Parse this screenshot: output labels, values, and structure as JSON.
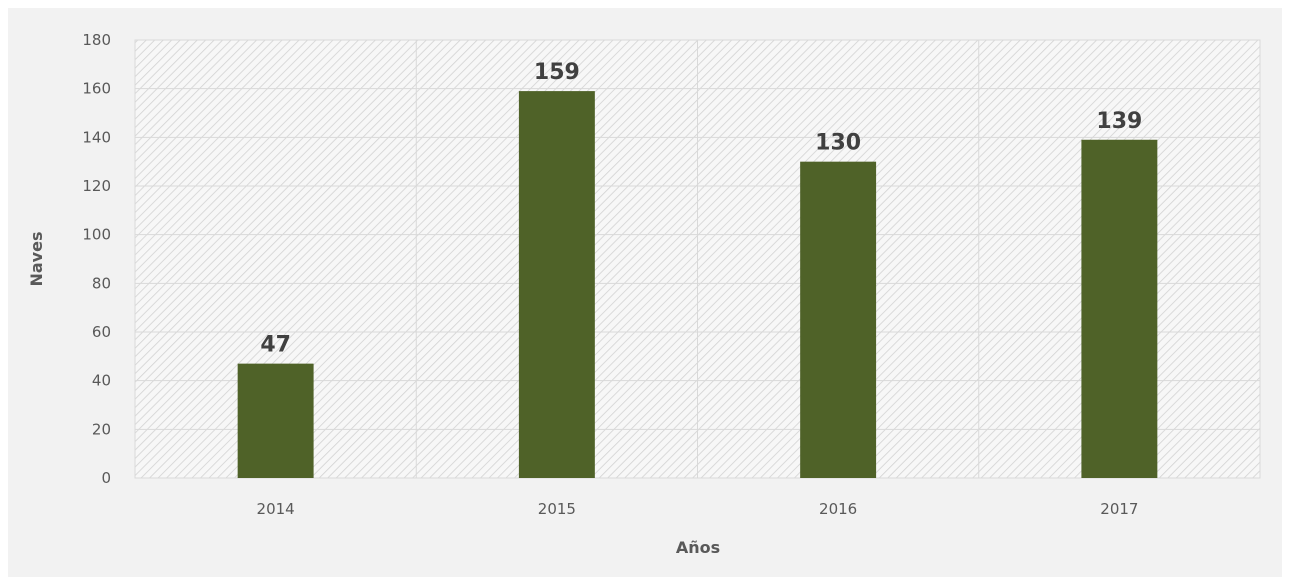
{
  "chart_data": {
    "type": "bar",
    "categories": [
      "2014",
      "2015",
      "2016",
      "2017"
    ],
    "values": [
      47,
      159,
      130,
      139
    ],
    "data_labels": [
      "47",
      "159",
      "130",
      "139"
    ],
    "title": "",
    "xlabel": "Años",
    "ylabel": "Naves",
    "ylim": [
      0,
      180
    ],
    "yticks": [
      0,
      20,
      40,
      60,
      80,
      100,
      120,
      140,
      160,
      180
    ],
    "ytick_labels": [
      "0",
      "20",
      "40",
      "60",
      "80",
      "100",
      "120",
      "140",
      "160",
      "180"
    ],
    "grid": true,
    "plot_background": "hatched",
    "bar_color": "#4f6228",
    "legend": "none"
  }
}
